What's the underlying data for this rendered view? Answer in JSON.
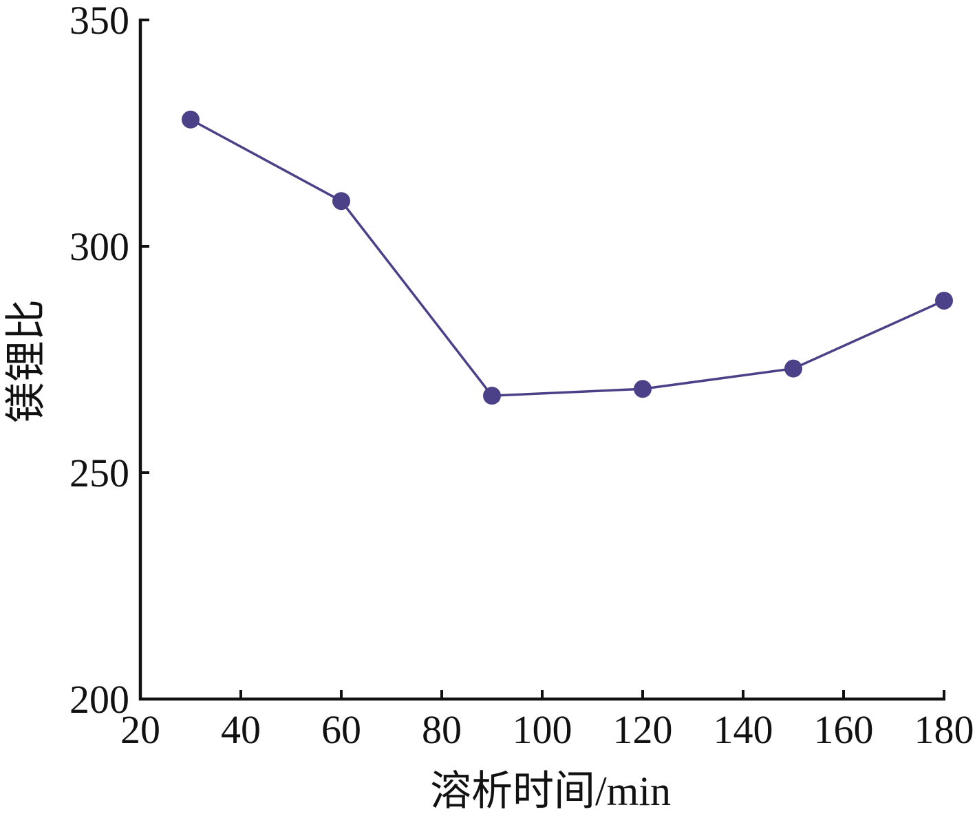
{
  "chart_data": {
    "type": "line",
    "title": "",
    "xlabel": "溶析时间/min",
    "ylabel": "镁锂比",
    "xlim": [
      20,
      180
    ],
    "ylim": [
      200,
      350
    ],
    "xticks": [
      "20",
      "40",
      "60",
      "80",
      "100",
      "120",
      "140",
      "160",
      "180"
    ],
    "yticks": [
      "200",
      "250",
      "300",
      "350"
    ],
    "grid": false,
    "legend": "none",
    "series": [
      {
        "color": "#4a4189",
        "x": [
          30,
          60,
          90,
          120,
          150,
          180
        ],
        "y": [
          328,
          310,
          267,
          268.5,
          273,
          288
        ]
      }
    ]
  }
}
